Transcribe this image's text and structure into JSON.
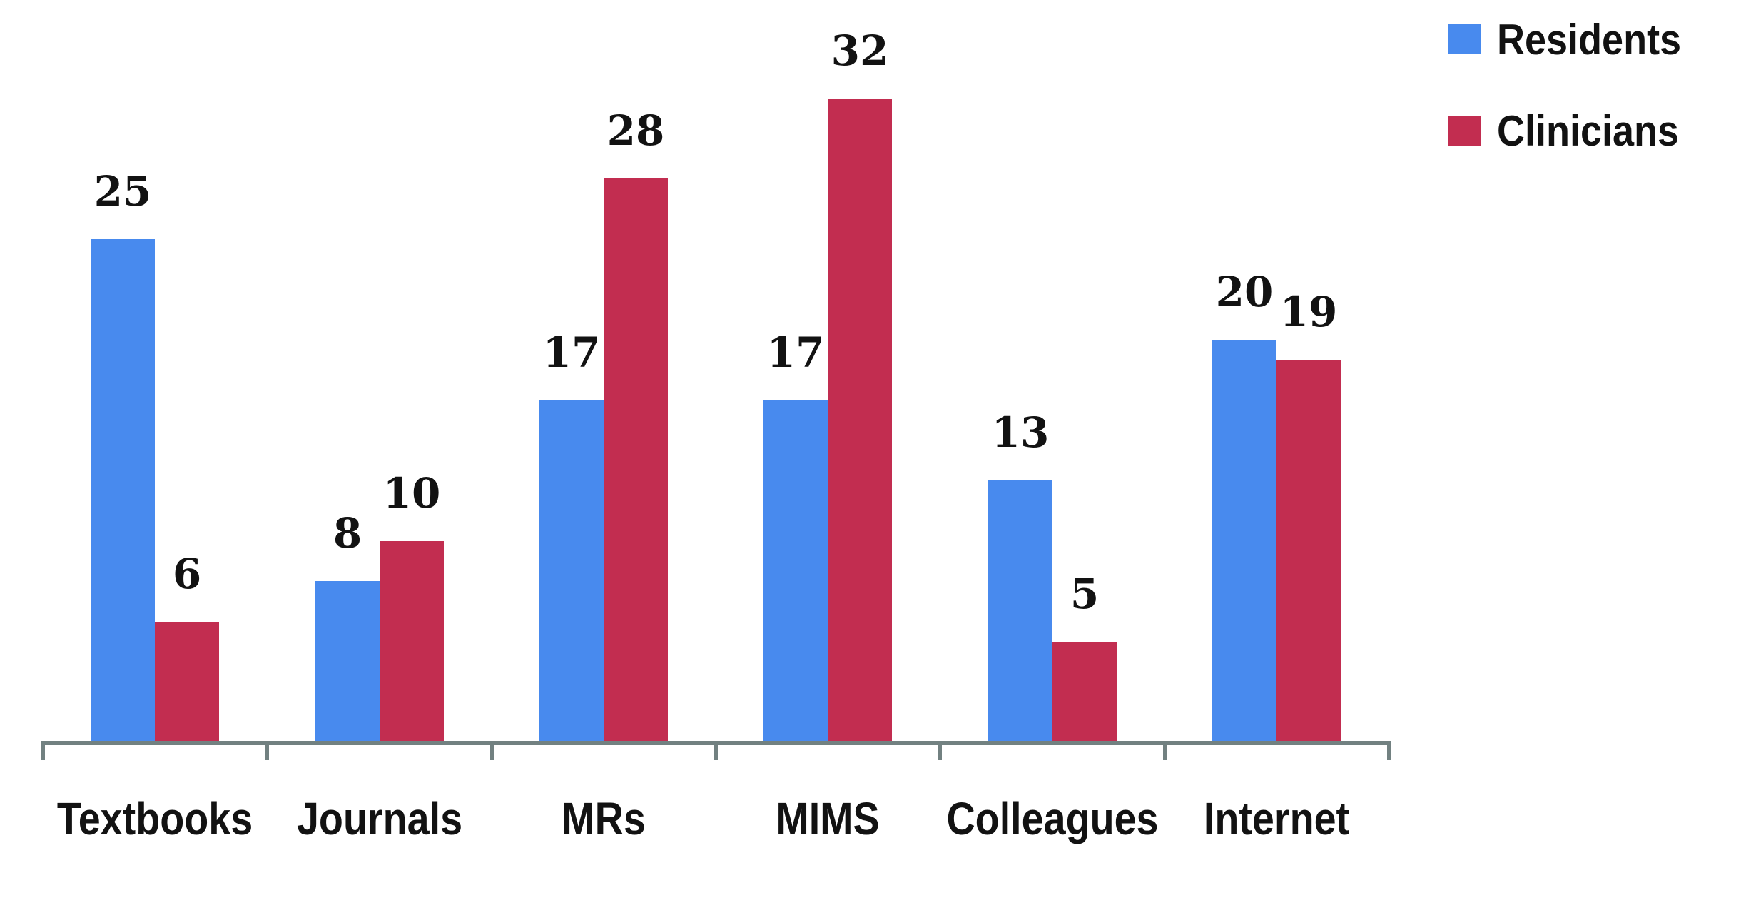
{
  "chart_data": {
    "type": "bar",
    "title": "",
    "xlabel": "",
    "ylabel": "",
    "categories": [
      "Textbooks",
      "Journals",
      "MRs",
      "MIMS",
      "Colleagues",
      "Internet"
    ],
    "series": [
      {
        "name": "Residents",
        "color": "#488aee",
        "values": [
          25,
          8,
          17,
          17,
          13,
          20
        ]
      },
      {
        "name": "Clinicians",
        "color": "#c22d50",
        "values": [
          6,
          10,
          28,
          32,
          5,
          19
        ]
      }
    ],
    "value_labels": {
      "Residents": [
        "25",
        "8",
        "17",
        "17",
        "13",
        "20"
      ],
      "Clinicians": [
        "6",
        "10",
        "28",
        "32",
        "5",
        "19"
      ]
    },
    "ylim": [
      0,
      35
    ],
    "grid": false,
    "y_axis_shown": false,
    "legend_position": "top-right",
    "axis_color": "#728181",
    "label_color": "#121212"
  }
}
